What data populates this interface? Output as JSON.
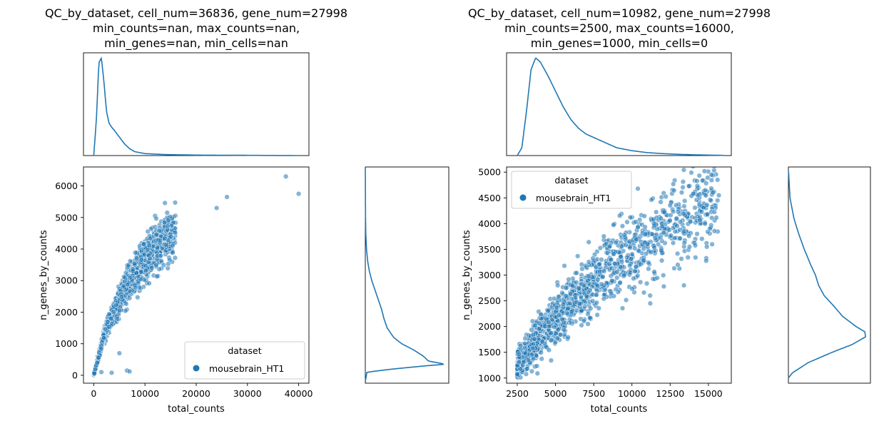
{
  "chart_data": [
    {
      "type": "scatter",
      "title_lines": [
        "QC_by_dataset, cell_num=36836, gene_num=27998",
        "min_counts=nan, max_counts=nan,",
        "min_genes=nan, min_cells=nan"
      ],
      "xlabel": "total_counts",
      "ylabel": "n_genes_by_counts",
      "xlim": [
        -2000,
        42000
      ],
      "ylim": [
        -250,
        6600
      ],
      "xticks": [
        0,
        10000,
        20000,
        30000,
        40000
      ],
      "xtick_labels": [
        "0",
        "10000",
        "20000",
        "30000",
        "40000"
      ],
      "yticks": [
        0,
        1000,
        2000,
        3000,
        4000,
        5000,
        6000
      ],
      "ytick_labels": [
        "0",
        "1000",
        "2000",
        "3000",
        "4000",
        "5000",
        "6000"
      ],
      "legend": {
        "title": "dataset",
        "labels": [
          "mousebrain_HT1"
        ],
        "placement": "lower right"
      },
      "grid": false,
      "series": [
        {
          "name": "mousebrain_HT1",
          "color": "#1f77b4",
          "trend_x": [
            0,
            2000,
            4000,
            6000,
            8000,
            10000,
            12000,
            14000,
            16000,
            20000,
            24000,
            28000
          ],
          "trend_y": [
            0,
            1250,
            2000,
            2700,
            3200,
            3650,
            4050,
            4350,
            4600,
            5000,
            5300,
            5600
          ],
          "outliers": [
            [
              37500,
              6300
            ],
            [
              40000,
              5750
            ],
            [
              26000,
              5650
            ],
            [
              24000,
              5300
            ],
            [
              6500,
              150
            ],
            [
              7000,
              120
            ],
            [
              1500,
              100
            ],
            [
              3500,
              80
            ],
            [
              5000,
              700
            ]
          ]
        }
      ],
      "marginal_x_density": {
        "x": [
          0,
          500,
          1000,
          1500,
          2000,
          2500,
          3000,
          3500,
          4000,
          5000,
          6000,
          7000,
          8000,
          10000,
          14000,
          20000,
          40000
        ],
        "y": [
          0,
          0.35,
          0.95,
          1.0,
          0.75,
          0.45,
          0.33,
          0.29,
          0.26,
          0.19,
          0.12,
          0.07,
          0.04,
          0.02,
          0.01,
          0.005,
          0.0
        ]
      },
      "marginal_y_density": {
        "y": [
          -200,
          100,
          200,
          300,
          350,
          450,
          600,
          800,
          1000,
          1200,
          1500,
          1800,
          2100,
          2400,
          2700,
          3000,
          3300,
          3600,
          4000,
          4500,
          5000,
          6000,
          6600
        ],
        "d": [
          0,
          0.02,
          0.35,
          0.75,
          0.99,
          0.78,
          0.72,
          0.6,
          0.45,
          0.35,
          0.27,
          0.23,
          0.2,
          0.16,
          0.12,
          0.08,
          0.05,
          0.03,
          0.015,
          0.006,
          0.003,
          0.001,
          0.0
        ]
      }
    },
    {
      "type": "scatter",
      "title_lines": [
        "QC_by_dataset, cell_num=10982, gene_num=27998",
        "min_counts=2500, max_counts=16000,",
        "min_genes=1000, min_cells=0"
      ],
      "xlabel": "total_counts",
      "ylabel": "n_genes_by_counts",
      "xlim": [
        1800,
        16500
      ],
      "ylim": [
        900,
        5100
      ],
      "xticks": [
        2500,
        5000,
        7500,
        10000,
        12500,
        15000
      ],
      "xtick_labels": [
        "2500",
        "5000",
        "7500",
        "10000",
        "12500",
        "15000"
      ],
      "yticks": [
        1000,
        1500,
        2000,
        2500,
        3000,
        3500,
        4000,
        4500,
        5000
      ],
      "ytick_labels": [
        "1000",
        "1500",
        "2000",
        "2500",
        "3000",
        "3500",
        "4000",
        "4500",
        "5000"
      ],
      "legend": {
        "title": "dataset",
        "labels": [
          "mousebrain_HT1"
        ],
        "placement": "upper left"
      },
      "grid": false,
      "series": [
        {
          "name": "mousebrain_HT1",
          "color": "#1f77b4",
          "trend_x": [
            2500,
            4000,
            5000,
            6000,
            7000,
            8000,
            9000,
            10000,
            11000,
            12000,
            13000,
            14000,
            15000,
            15700
          ],
          "trend_y": [
            1250,
            1800,
            2150,
            2450,
            2750,
            3000,
            3250,
            3450,
            3650,
            3850,
            4000,
            4150,
            4350,
            4450
          ],
          "outliers": [
            [
              15200,
              4950
            ],
            [
              15600,
              4850
            ],
            [
              11200,
              2450
            ],
            [
              13000,
              3200
            ],
            [
              13400,
              2800
            ],
            [
              14900,
              3550
            ],
            [
              15100,
              3900
            ],
            [
              15600,
              4450
            ]
          ]
        }
      ],
      "marginal_x_density": {
        "x": [
          2500,
          2800,
          3100,
          3400,
          3700,
          4000,
          4500,
          5000,
          5500,
          6000,
          6500,
          7000,
          8000,
          9000,
          10000,
          11000,
          12000,
          13000,
          14000,
          15000,
          16000
        ],
        "y": [
          0,
          0.08,
          0.45,
          0.88,
          1.0,
          0.96,
          0.82,
          0.66,
          0.5,
          0.37,
          0.28,
          0.22,
          0.15,
          0.08,
          0.05,
          0.03,
          0.02,
          0.013,
          0.008,
          0.005,
          0.002
        ]
      },
      "marginal_y_density": {
        "y": [
          1000,
          1100,
          1300,
          1500,
          1650,
          1800,
          1900,
          2000,
          2200,
          2400,
          2600,
          2800,
          3000,
          3200,
          3500,
          3800,
          4100,
          4500,
          5000
        ],
        "d": [
          0,
          0.05,
          0.25,
          0.55,
          0.8,
          0.97,
          0.96,
          0.85,
          0.68,
          0.57,
          0.45,
          0.38,
          0.34,
          0.28,
          0.2,
          0.13,
          0.07,
          0.02,
          0.003
        ]
      }
    }
  ]
}
